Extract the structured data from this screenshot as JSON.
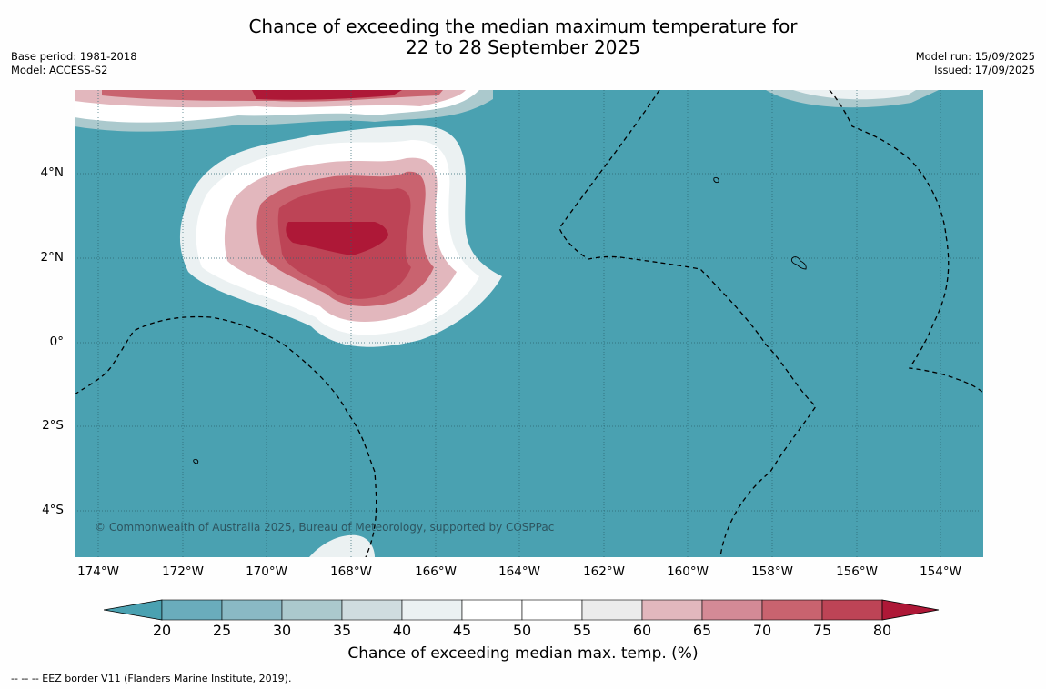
{
  "header": {
    "title_line1": "Chance of exceeding the median maximum temperature for",
    "title_line2": "22 to 28 September 2025",
    "base_period": "Base period: 1981-2018",
    "model": "Model: ACCESS-S2",
    "model_run": "Model run: 15/09/2025",
    "issued": "Issued: 17/09/2025"
  },
  "map": {
    "lat_labels": [
      "4°N",
      "2°N",
      "0°",
      "2°S",
      "4°S"
    ],
    "lon_labels": [
      "174°W",
      "172°W",
      "170°W",
      "168°W",
      "166°W",
      "164°W",
      "162°W",
      "160°W",
      "158°W",
      "156°W",
      "154°W"
    ],
    "credit": "© Commonwealth of Australia 2025, Bureau of Meteorology, supported by COSPPac",
    "colors": {
      "below_20": "#4aa1b1",
      "band_80_plus": "#b01a38",
      "band_75_80": "#c04759",
      "band_65_70": "#dca9b1",
      "band_45_55": "#ffffff",
      "eez_border": "#000000"
    }
  },
  "colorbar": {
    "ticks": [
      "20",
      "25",
      "30",
      "35",
      "40",
      "45",
      "50",
      "55",
      "60",
      "65",
      "70",
      "75",
      "80"
    ],
    "colors": [
      "#4aa1b1",
      "#6aacbc",
      "#8ab9c4",
      "#abc9cd",
      "#cfdcdf",
      "#ebf1f2",
      "#ffffff",
      "#ffffff",
      "#ececec",
      "#e2b7bd",
      "#d48a96",
      "#c9636f",
      "#bd4456",
      "#ae1837"
    ],
    "label": "Chance of exceeding median max. temp. (%)"
  },
  "footer": {
    "legend_text": "--  --  -- EEZ border V11 (Flanders Marine Institute, 2019)."
  }
}
